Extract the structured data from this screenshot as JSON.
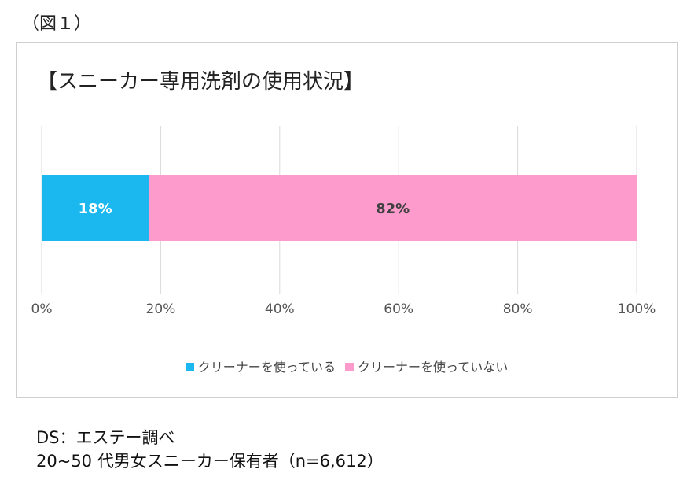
{
  "figure_label": "（図１）",
  "chart_data": {
    "type": "bar",
    "orientation": "horizontal",
    "stacked": true,
    "percent_stacked": true,
    "title": "【スニーカー専用洗剤の使用状況】",
    "categories": [
      ""
    ],
    "series": [
      {
        "name": "クリーナーを使っている",
        "values": [
          18
        ],
        "label": "18%",
        "color": "#1ab8ee",
        "label_color": "#ffffff"
      },
      {
        "name": "クリーナーを使っていない",
        "values": [
          82
        ],
        "label": "82%",
        "color": "#fd9bcc",
        "label_color": "#404040"
      }
    ],
    "xlim": [
      0,
      100
    ],
    "xticks": [
      "0%",
      "20%",
      "40%",
      "60%",
      "80%",
      "100%"
    ],
    "grid": true,
    "legend_position": "bottom"
  },
  "notes": {
    "source": "DS：エステー調べ",
    "sample": "20~50 代男女スニーカー保有者（n=6,612）"
  }
}
